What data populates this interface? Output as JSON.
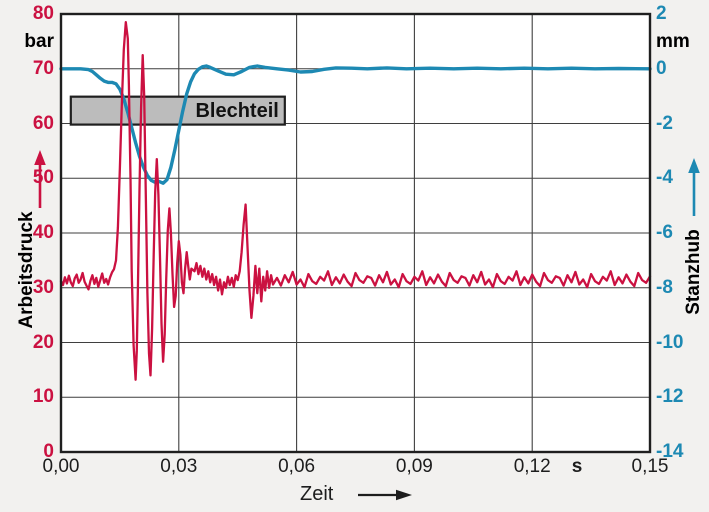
{
  "figure": {
    "background": "#f2f1ef",
    "plot_background": "#ffffff",
    "grid_color": "#3f3f3f",
    "border_color": "#1f1f1f"
  },
  "chart_data": {
    "type": "line",
    "title": "",
    "grid": true,
    "legend": "none",
    "x_axis": {
      "label": "Zeit",
      "unit": "s",
      "range": [
        0,
        0.15
      ],
      "tick_labels": [
        "0,00",
        "0,03",
        "0,06",
        "0,09",
        "0,12",
        "0,15"
      ],
      "tick_values": [
        0,
        0.03,
        0.06,
        0.09,
        0.12,
        0.15
      ]
    },
    "left_axis": {
      "label": "Arbeitsdruck",
      "unit": "bar",
      "color": "#cb1141",
      "range": [
        0,
        80
      ],
      "tick_values": [
        80,
        70,
        60,
        50,
        40,
        30,
        20,
        10,
        0
      ]
    },
    "right_axis": {
      "label": "Stanzhub",
      "unit": "mm",
      "color": "#1d89b3",
      "range": [
        -14,
        2
      ],
      "tick_values": [
        2,
        0,
        -2,
        -4,
        -6,
        -8,
        -10,
        -12,
        -14
      ]
    },
    "annotation": {
      "label": "Blechteil",
      "t_start": 0.0025,
      "t_end": 0.057,
      "bar_top": 64.9,
      "bar_bottom": 59.8,
      "fill": "#bcbcbc",
      "border": "#1f1f1f"
    },
    "series": [
      {
        "name": "Stanzhub",
        "axis": "right",
        "color": "#1d89b3",
        "stroke_width": 3.4,
        "segments": [
          {
            "pairs": [
              [
                0,
                0
              ],
              [
                0.005,
                0
              ],
              [
                0.007,
                -0.03
              ],
              [
                0.008,
                -0.1
              ],
              [
                0.009,
                -0.22
              ],
              [
                0.01,
                -0.35
              ],
              [
                0.011,
                -0.45
              ],
              [
                0.012,
                -0.5
              ],
              [
                0.013,
                -0.5
              ],
              [
                0.014,
                -0.55
              ],
              [
                0.015,
                -0.75
              ],
              [
                0.016,
                -1.1
              ],
              [
                0.017,
                -1.6
              ],
              [
                0.018,
                -2.15
              ],
              [
                0.019,
                -2.7
              ],
              [
                0.02,
                -3.2
              ],
              [
                0.021,
                -3.6
              ],
              [
                0.022,
                -3.9
              ],
              [
                0.023,
                -4.08
              ],
              [
                0.024,
                -4.15
              ],
              [
                0.025,
                -4.12
              ],
              [
                0.026,
                -4.18
              ],
              [
                0.027,
                -4.05
              ],
              [
                0.028,
                -3.6
              ],
              [
                0.029,
                -2.95
              ],
              [
                0.03,
                -2.25
              ],
              [
                0.031,
                -1.55
              ],
              [
                0.032,
                -0.92
              ],
              [
                0.033,
                -0.48
              ],
              [
                0.034,
                -0.18
              ],
              [
                0.035,
                -0.02
              ],
              [
                0.036,
                0.07
              ],
              [
                0.037,
                0.1
              ],
              [
                0.038,
                0.05
              ],
              [
                0.04,
                -0.08
              ],
              [
                0.042,
                -0.2
              ],
              [
                0.044,
                -0.22
              ],
              [
                0.046,
                -0.1
              ],
              [
                0.048,
                0.05
              ],
              [
                0.05,
                0.1
              ],
              [
                0.052,
                0.05
              ],
              [
                0.055,
                0
              ],
              [
                0.058,
                -0.05
              ],
              [
                0.061,
                -0.12
              ],
              [
                0.064,
                -0.1
              ],
              [
                0.067,
                -0.02
              ],
              [
                0.07,
                0.03
              ],
              [
                0.074,
                0.02
              ],
              [
                0.078,
                0
              ],
              [
                0.083,
                0.03
              ],
              [
                0.088,
                0
              ],
              [
                0.094,
                0.02
              ],
              [
                0.1,
                0
              ],
              [
                0.106,
                0.02
              ],
              [
                0.112,
                0
              ],
              [
                0.118,
                0.02
              ],
              [
                0.124,
                0
              ],
              [
                0.13,
                0.02
              ],
              [
                0.136,
                0
              ],
              [
                0.142,
                0.01
              ],
              [
                0.15,
                0
              ]
            ]
          }
        ]
      },
      {
        "name": "Arbeitsdruck",
        "axis": "left",
        "color": "#cb1141",
        "stroke_width": 2.3,
        "segments": [
          {
            "t0": 0,
            "dt": 0.0005,
            "values": [
              31.2,
              30.5,
              31.9,
              30.8,
              32.2,
              31,
              30.3,
              31.7,
              32.4,
              30.9,
              31.5,
              32.7,
              31.1,
              30.4,
              29.7,
              31.3,
              32.3,
              30.7,
              31.8,
              30.2,
              31.4,
              32.6,
              30.9,
              31.6,
              30.6,
              31.9,
              32.8,
              33.4
            ]
          },
          {
            "pairs": [
              [
                0.014,
                35
              ],
              [
                0.0145,
                41
              ],
              [
                0.015,
                52
              ],
              [
                0.0155,
                64
              ],
              [
                0.016,
                73.5
              ],
              [
                0.0165,
                78.5
              ],
              [
                0.017,
                75.5
              ],
              [
                0.0173,
                67
              ],
              [
                0.0177,
                50
              ],
              [
                0.018,
                33
              ],
              [
                0.0185,
                19.5
              ],
              [
                0.019,
                13.2
              ],
              [
                0.0193,
                18.5
              ],
              [
                0.0196,
                31
              ],
              [
                0.02,
                48
              ],
              [
                0.0204,
                63
              ],
              [
                0.0208,
                72.5
              ],
              [
                0.0212,
                65
              ],
              [
                0.0216,
                47
              ],
              [
                0.022,
                29
              ],
              [
                0.0224,
                18
              ],
              [
                0.0228,
                14
              ],
              [
                0.0232,
                22.5
              ],
              [
                0.0236,
                36
              ],
              [
                0.024,
                47.5
              ],
              [
                0.0244,
                53.5
              ],
              [
                0.0248,
                47
              ],
              [
                0.0252,
                35.5
              ],
              [
                0.0256,
                23.5
              ],
              [
                0.026,
                16.5
              ],
              [
                0.0264,
                21.5
              ],
              [
                0.0268,
                31.5
              ],
              [
                0.0272,
                40.5
              ],
              [
                0.0276,
                44.5
              ],
              [
                0.028,
                40
              ],
              [
                0.0284,
                32.5
              ],
              [
                0.0288,
                26.5
              ],
              [
                0.0292,
                28.5
              ],
              [
                0.0296,
                34.5
              ],
              [
                0.03,
                38.5
              ],
              [
                0.0304,
                36
              ],
              [
                0.0308,
                31
              ],
              [
                0.0312,
                29
              ],
              [
                0.0316,
                33.5
              ],
              [
                0.032,
                36.5
              ],
              [
                0.0324,
                34
              ],
              [
                0.0328,
                31.5
              ],
              [
                0.0332,
                33.5
              ]
            ]
          },
          {
            "t0": 0.034,
            "dt": 0.0005,
            "values": [
              33,
              34.5,
              32.5,
              34,
              32,
              33.5,
              31.5,
              33,
              31,
              32.5,
              30.5,
              32,
              29.5,
              31.5,
              28.8,
              31,
              30,
              32,
              30.5,
              31.8,
              30.2,
              32.3,
              31.4
            ]
          },
          {
            "t0": 0.0455,
            "dt": 0.0005,
            "values": [
              33,
              36.5,
              41.5,
              45.2,
              37.5,
              29.5,
              24.5,
              28.5,
              34,
              29,
              33.5,
              27.5,
              32,
              29.5,
              33,
              30,
              32.3,
              30.6
            ]
          },
          {
            "t0": 0.055,
            "dt": 0.001,
            "values": [
              31.8,
              30.4,
              32.3,
              31,
              32.9,
              30.6,
              31.5,
              30.1,
              32.5,
              31.2,
              30.7,
              32,
              31.3,
              33,
              30.5,
              31.9,
              30.8,
              32.4,
              31.1,
              30.3,
              32.7,
              31.4,
              30.9,
              32.1,
              31.8,
              30.4,
              32.3,
              31,
              32.9,
              30.6,
              31.5,
              30.1,
              32.5,
              31.2,
              30.7,
              32,
              31.3,
              33,
              30.5,
              31.9,
              30.8,
              32.4,
              31.1,
              30.3,
              32.7,
              31.4,
              30.9,
              32.1,
              31.8,
              30.4,
              32.3,
              31,
              32.9,
              30.6,
              31.5,
              30.1,
              32.5,
              31.2,
              30.7,
              32,
              31.3,
              33,
              30.5,
              31.9,
              30.8,
              32.4,
              31.1,
              30.3,
              32.7,
              31.4,
              30.9,
              32.1,
              31.8,
              30.4,
              32.3,
              31,
              32.9,
              30.6,
              31.5,
              30.1,
              32.5,
              31.2,
              30.7,
              32,
              31.3,
              33,
              30.5,
              31.9,
              30.8,
              32.4,
              31.1,
              30.3,
              32.7,
              31.4,
              30.9,
              32.1
            ]
          }
        ]
      }
    ]
  }
}
